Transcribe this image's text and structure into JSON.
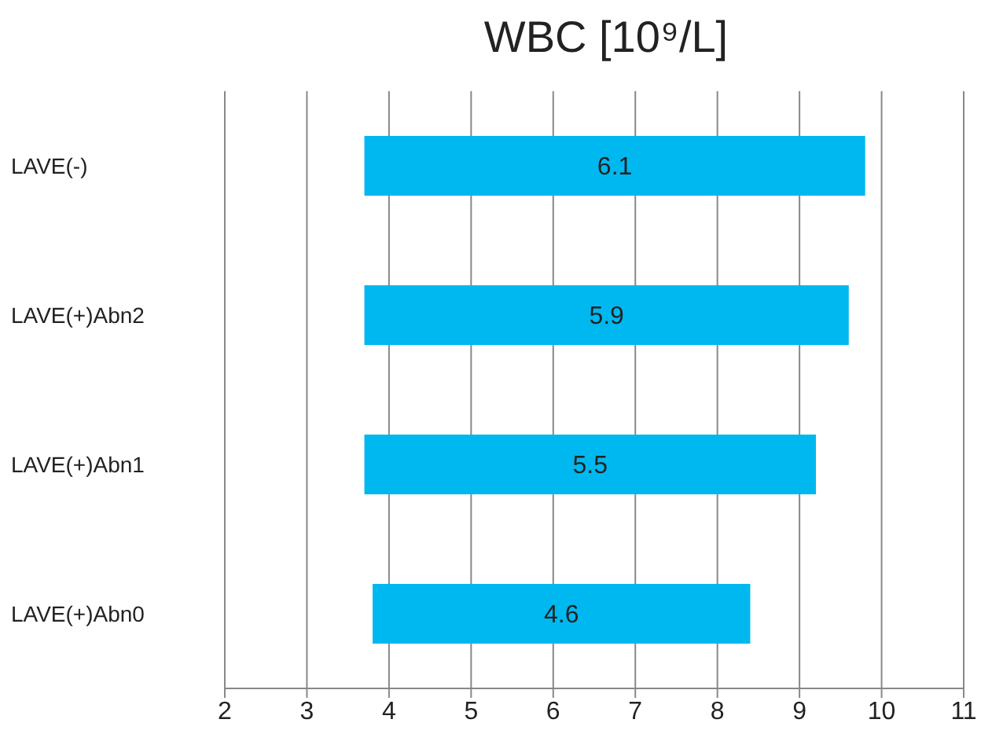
{
  "chart_data": {
    "type": "bar",
    "orientation": "horizontal",
    "title": "WBC [10⁹/L]",
    "categories": [
      "LAVE(-)",
      "LAVE(+)Abn2",
      "LAVE(+)Abn1",
      "LAVE(+)Abn0"
    ],
    "base": [
      3.7,
      3.7,
      3.7,
      3.8
    ],
    "values": [
      6.1,
      5.9,
      5.5,
      4.6
    ],
    "color": "#00b8f0",
    "data_labels": true,
    "xlim": [
      2,
      11
    ],
    "xticks": [
      2,
      3,
      4,
      5,
      6,
      7,
      8,
      9,
      10,
      11
    ],
    "grid": "x"
  }
}
